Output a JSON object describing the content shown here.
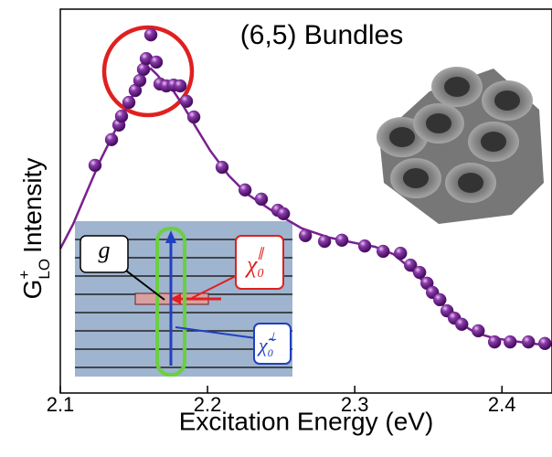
{
  "chart_data": {
    "type": "scatter",
    "title": "(6,5) Bundles",
    "xlabel": "Excitation Energy (eV)",
    "ylabel": {
      "base": "G",
      "sup": "+",
      "sub": "LO",
      "rest": "Intensity"
    },
    "xlim": [
      2.1,
      2.434
    ],
    "ylim": [
      0,
      1
    ],
    "xticks": [
      2.1,
      2.2,
      2.3,
      2.4
    ],
    "series": [
      {
        "type": "scatter",
        "color": "#6b1f8c",
        "x": [
          2.1236,
          2.1348,
          2.1398,
          2.1416,
          2.1466,
          2.1509,
          2.154,
          2.1565,
          2.1584,
          2.1615,
          2.1652,
          2.1677,
          2.172,
          2.177,
          2.1814,
          2.1857,
          2.1907,
          2.2099,
          2.2255,
          2.2366,
          2.2478,
          2.2516,
          2.2665,
          2.2795,
          2.2913,
          2.3068,
          2.3193,
          2.3311,
          2.3379,
          2.3441,
          2.3491,
          2.3528,
          2.3578,
          2.3627,
          2.3677,
          2.3727,
          2.3839,
          2.395,
          2.4056,
          2.418,
          2.4292
        ],
        "values": [
          0.593,
          0.66,
          0.698,
          0.721,
          0.757,
          0.788,
          0.814,
          0.843,
          0.871,
          0.933,
          0.862,
          0.805,
          0.8,
          0.802,
          0.8,
          0.76,
          0.719,
          0.588,
          0.529,
          0.505,
          0.476,
          0.467,
          0.41,
          0.395,
          0.398,
          0.383,
          0.369,
          0.364,
          0.333,
          0.314,
          0.286,
          0.262,
          0.243,
          0.214,
          0.195,
          0.179,
          0.162,
          0.133,
          0.133,
          0.133,
          0.129
        ]
      },
      {
        "type": "line",
        "color": "#7a1f8f",
        "x": [
          2.1,
          2.1087,
          2.118,
          2.1273,
          2.1366,
          2.146,
          2.1522,
          2.1584,
          2.1615,
          2.1658,
          2.1708,
          2.177,
          2.1832,
          2.1925,
          2.2019,
          2.2143,
          2.2267,
          2.2453,
          2.264,
          2.2826,
          2.3012,
          2.3137,
          2.3261,
          2.3354,
          2.3447,
          2.354,
          2.3634,
          2.3727,
          2.382,
          2.3944,
          2.4068,
          2.4193,
          2.434
        ],
        "values": [
          0.376,
          0.44,
          0.524,
          0.607,
          0.679,
          0.75,
          0.798,
          0.838,
          0.845,
          0.829,
          0.805,
          0.786,
          0.75,
          0.69,
          0.631,
          0.567,
          0.519,
          0.471,
          0.429,
          0.405,
          0.39,
          0.381,
          0.362,
          0.333,
          0.298,
          0.257,
          0.214,
          0.179,
          0.157,
          0.143,
          0.136,
          0.129,
          0.124
        ]
      }
    ],
    "inset_labels": {
      "g": "g",
      "chi_par": {
        "base": "χ",
        "sub": "0",
        "sup": "∥"
      },
      "chi_perp": {
        "base": "χ̃",
        "sub": "0",
        "sup": "⊥"
      }
    }
  }
}
